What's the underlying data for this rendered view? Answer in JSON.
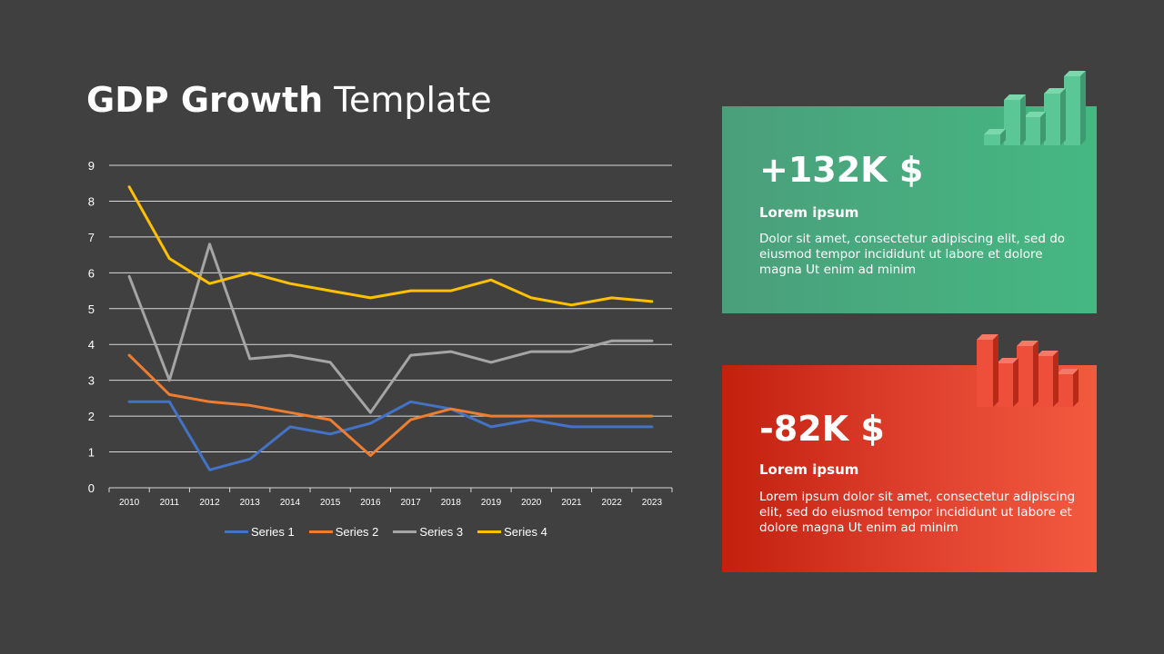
{
  "slide": {
    "title_bold": "GDP Growth",
    "title_light": "Template"
  },
  "cards": [
    {
      "value": "+132K $",
      "heading": "Lorem ipsum",
      "body": "Dolor sit amet, consectetur adipiscing elit, sed do eiusmod tempor incididunt ut labore et dolore magna Ut enim ad minim",
      "accent": "#45b882",
      "icon": "bar-chart-3d-icon"
    },
    {
      "value": "-82K $",
      "heading": "Lorem ipsum",
      "body": "Lorem ipsum dolor sit amet, consectetur adipiscing elit, sed do eiusmod tempor incididunt ut labore et dolore magna Ut enim ad minim",
      "accent": "#e8432f",
      "icon": "bar-chart-3d-icon"
    }
  ],
  "chart_data": {
    "type": "line",
    "title": "",
    "xlabel": "",
    "ylabel": "",
    "x": [
      "2010",
      "2011",
      "2012",
      "2013",
      "2014",
      "2015",
      "2016",
      "2017",
      "2018",
      "2019",
      "2020",
      "2021",
      "2022",
      "2023"
    ],
    "ylim": [
      0,
      9
    ],
    "yticks": [
      0,
      1,
      2,
      3,
      4,
      5,
      6,
      7,
      8,
      9
    ],
    "grid": true,
    "legend_position": "bottom",
    "series": [
      {
        "name": "Series 1",
        "color": "#4472c4",
        "values": [
          2.4,
          2.4,
          0.5,
          0.8,
          1.7,
          1.5,
          1.8,
          2.4,
          2.2,
          1.7,
          1.9,
          1.7,
          1.7,
          1.7
        ]
      },
      {
        "name": "Series 2",
        "color": "#ed7d31",
        "values": [
          3.7,
          2.6,
          2.4,
          2.3,
          2.1,
          1.9,
          0.9,
          1.9,
          2.2,
          2.0,
          2.0,
          2.0,
          2.0,
          2.0
        ]
      },
      {
        "name": "Series 3",
        "color": "#a5a5a5",
        "values": [
          5.9,
          3.0,
          6.8,
          3.6,
          3.7,
          3.5,
          2.1,
          3.7,
          3.8,
          3.5,
          3.8,
          3.8,
          4.1,
          4.1
        ]
      },
      {
        "name": "Series 4",
        "color": "#ffc000",
        "values": [
          8.4,
          6.4,
          5.7,
          6.0,
          5.7,
          5.5,
          5.3,
          5.5,
          5.5,
          5.8,
          5.3,
          5.1,
          5.3,
          5.2
        ]
      }
    ]
  }
}
